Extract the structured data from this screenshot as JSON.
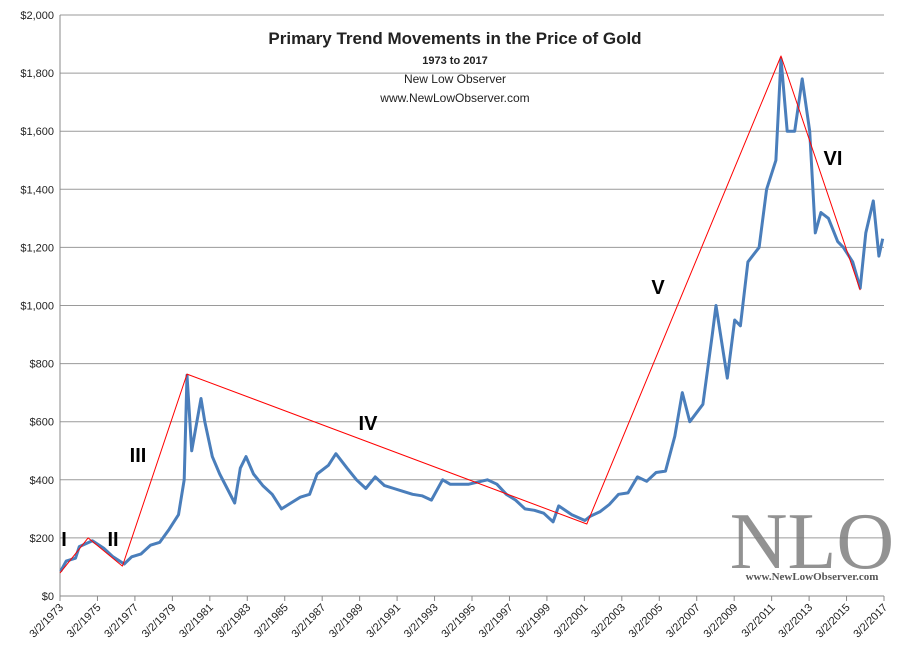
{
  "chart_data": {
    "type": "line",
    "title": "Primary Trend Movements in the Price of Gold",
    "subtitle": "1973  to 2017",
    "source": "New Low Observer",
    "website": "www.NewLowObserver.com",
    "watermark": {
      "logo": "NLO",
      "url": "www.NewLowObserver.com"
    },
    "annotations": [
      "I",
      "II",
      "III",
      "IV",
      "V",
      "VI"
    ],
    "xlim": [
      1973.17,
      2017.17
    ],
    "xticks": [
      {
        "value": 1973.17,
        "label": "3/2/1973"
      },
      {
        "value": 1975.17,
        "label": "3/2/1975"
      },
      {
        "value": 1977.17,
        "label": "3/2/1977"
      },
      {
        "value": 1979.17,
        "label": "3/2/1979"
      },
      {
        "value": 1981.17,
        "label": "3/2/1981"
      },
      {
        "value": 1983.17,
        "label": "3/2/1983"
      },
      {
        "value": 1985.17,
        "label": "3/2/1985"
      },
      {
        "value": 1987.17,
        "label": "3/2/1987"
      },
      {
        "value": 1989.17,
        "label": "3/2/1989"
      },
      {
        "value": 1991.17,
        "label": "3/2/1991"
      },
      {
        "value": 1993.17,
        "label": "3/2/1993"
      },
      {
        "value": 1995.17,
        "label": "3/2/1995"
      },
      {
        "value": 1997.17,
        "label": "3/2/1997"
      },
      {
        "value": 1999.17,
        "label": "3/2/1999"
      },
      {
        "value": 2001.17,
        "label": "3/2/2001"
      },
      {
        "value": 2003.17,
        "label": "3/2/2003"
      },
      {
        "value": 2005.17,
        "label": "3/2/2005"
      },
      {
        "value": 2007.17,
        "label": "3/2/2007"
      },
      {
        "value": 2009.17,
        "label": "3/2/2009"
      },
      {
        "value": 2011.17,
        "label": "3/2/2011"
      },
      {
        "value": 2013.17,
        "label": "3/2/2013"
      },
      {
        "value": 2015.17,
        "label": "3/2/2015"
      },
      {
        "value": 2017.17,
        "label": "3/2/2017"
      }
    ],
    "ylim": [
      0,
      2000
    ],
    "yticks": [
      {
        "value": 0,
        "label": "$0"
      },
      {
        "value": 200,
        "label": "$200"
      },
      {
        "value": 400,
        "label": "$400"
      },
      {
        "value": 600,
        "label": "$600"
      },
      {
        "value": 800,
        "label": "$800"
      },
      {
        "value": 1000,
        "label": "$1,000"
      },
      {
        "value": 1200,
        "label": "$1,200"
      },
      {
        "value": 1400,
        "label": "$1,400"
      },
      {
        "value": 1600,
        "label": "$1,600"
      },
      {
        "value": 1800,
        "label": "$1,800"
      },
      {
        "value": 2000,
        "label": "$2,000"
      }
    ],
    "grid": true,
    "series": [
      {
        "color": "#4a7ebb",
        "width": 3,
        "x": [
          1973.2,
          1973.5,
          1974.0,
          1974.2,
          1974.9,
          1975.5,
          1976.0,
          1976.6,
          1977.0,
          1977.5,
          1978.0,
          1978.5,
          1979.0,
          1979.5,
          1979.8,
          1979.95,
          1980.2,
          1980.7,
          1980.9,
          1981.3,
          1981.7,
          1982.5,
          1982.8,
          1983.1,
          1983.5,
          1984.0,
          1984.5,
          1985.0,
          1985.5,
          1986.0,
          1986.5,
          1986.9,
          1987.5,
          1987.9,
          1988.5,
          1989.0,
          1989.5,
          1990.0,
          1990.5,
          1991.0,
          1991.5,
          1992.0,
          1992.5,
          1993.0,
          1993.6,
          1994.0,
          1995.0,
          1996.0,
          1996.5,
          1997.0,
          1997.5,
          1998.0,
          1998.5,
          1999.0,
          1999.5,
          1999.8,
          2000.5,
          2001.2,
          2001.5,
          2002.0,
          2002.5,
          2003.0,
          2003.5,
          2004.0,
          2004.5,
          2005.0,
          2005.5,
          2006.0,
          2006.4,
          2006.8,
          2007.5,
          2008.0,
          2008.2,
          2008.8,
          2009.2,
          2009.5,
          2009.9,
          2010.5,
          2010.9,
          2011.4,
          2011.67,
          2012.0,
          2012.4,
          2012.8,
          2013.2,
          2013.5,
          2013.8,
          2014.2,
          2014.7,
          2015.0,
          2015.5,
          2015.9,
          2016.2,
          2016.6,
          2016.9,
          2017.1
        ],
        "values": [
          85,
          120,
          130,
          170,
          190,
          165,
          135,
          110,
          135,
          145,
          175,
          185,
          230,
          280,
          400,
          760,
          500,
          680,
          600,
          480,
          420,
          320,
          440,
          480,
          420,
          380,
          350,
          300,
          320,
          340,
          350,
          420,
          450,
          490,
          440,
          400,
          370,
          410,
          380,
          370,
          360,
          350,
          345,
          330,
          400,
          385,
          385,
          400,
          385,
          350,
          330,
          300,
          295,
          285,
          255,
          310,
          280,
          260,
          275,
          290,
          315,
          350,
          355,
          410,
          395,
          425,
          430,
          550,
          700,
          600,
          660,
          900,
          1000,
          750,
          950,
          930,
          1150,
          1200,
          1400,
          1500,
          1850,
          1600,
          1600,
          1780,
          1600,
          1250,
          1320,
          1300,
          1220,
          1200,
          1150,
          1060,
          1250,
          1360,
          1170,
          1230
        ]
      },
      {
        "color": "#ff0000",
        "width": 1,
        "x": [
          1973.17,
          1974.67,
          1976.5,
          1979.95,
          2001.3,
          2011.67,
          2015.9
        ],
        "values": [
          79,
          200,
          103,
          764,
          248,
          1859,
          1053
        ]
      }
    ]
  }
}
